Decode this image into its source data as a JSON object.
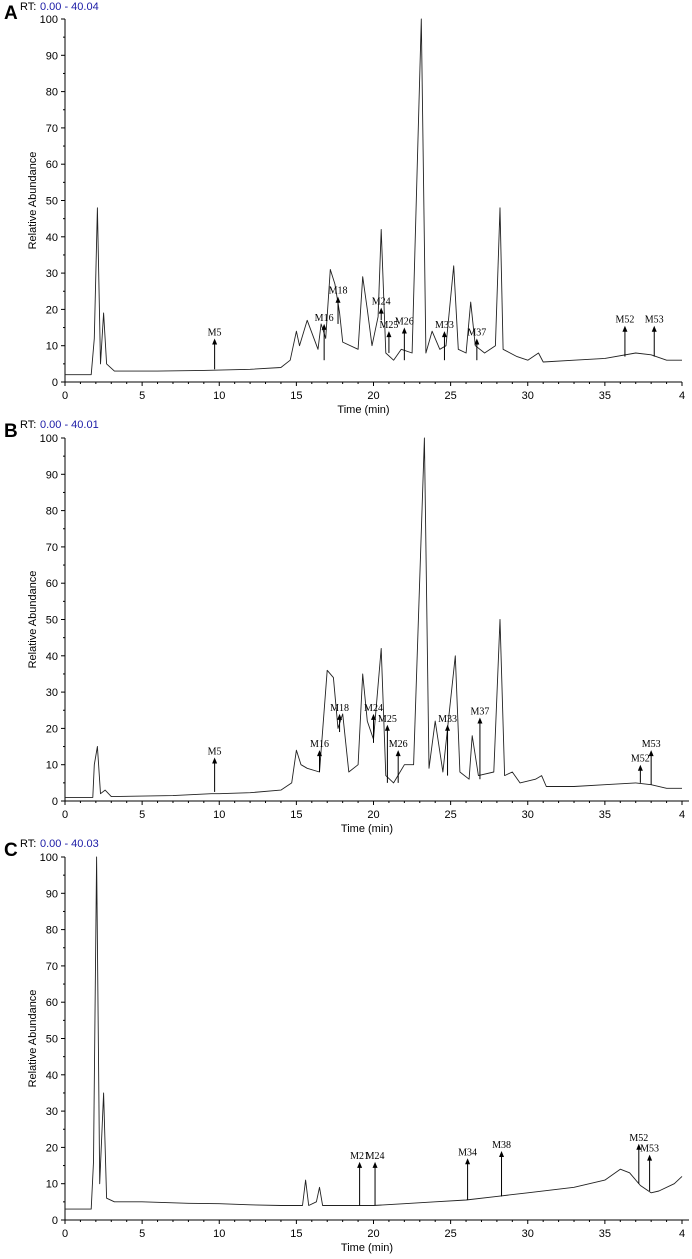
{
  "chart_data": [
    {
      "type": "line",
      "panel_letter": "A",
      "rt_prefix": "RT:",
      "rt_range_text": "0.00 - 40.04",
      "xlabel": "Time (min)",
      "ylabel": "Relative Abundance",
      "xlim": [
        0,
        40
      ],
      "ylim": [
        0,
        100
      ],
      "xticks": [
        "0",
        "5",
        "10",
        "15",
        "20",
        "25",
        "30",
        "35",
        "4"
      ],
      "yticks": [
        "0",
        "10",
        "20",
        "30",
        "40",
        "50",
        "60",
        "70",
        "80",
        "90",
        "100"
      ],
      "baseline": [
        [
          0,
          2
        ],
        [
          1.7,
          2
        ],
        [
          1.9,
          12
        ],
        [
          2.1,
          48
        ],
        [
          2.3,
          5
        ],
        [
          2.5,
          19
        ],
        [
          2.7,
          5
        ],
        [
          3.2,
          3
        ],
        [
          6,
          3
        ],
        [
          9,
          3.2
        ],
        [
          12,
          3.5
        ],
        [
          14,
          4
        ],
        [
          14.6,
          6
        ],
        [
          15,
          14
        ],
        [
          15.2,
          10
        ],
        [
          15.7,
          17
        ],
        [
          16.4,
          9
        ],
        [
          16.6,
          16
        ],
        [
          16.9,
          12
        ],
        [
          17.2,
          31
        ],
        [
          17.5,
          27
        ],
        [
          17.8,
          19
        ],
        [
          18,
          11
        ],
        [
          19,
          9
        ],
        [
          19.3,
          29
        ],
        [
          19.6,
          20
        ],
        [
          19.9,
          10
        ],
        [
          20.3,
          18
        ],
        [
          20.5,
          42
        ],
        [
          20.8,
          8
        ],
        [
          21.3,
          6
        ],
        [
          21.8,
          9
        ],
        [
          22.5,
          8
        ],
        [
          23.1,
          100
        ],
        [
          23.4,
          8
        ],
        [
          23.8,
          14
        ],
        [
          24.3,
          9
        ],
        [
          24.7,
          10
        ],
        [
          25.2,
          32
        ],
        [
          25.5,
          9
        ],
        [
          26,
          8
        ],
        [
          26.3,
          22
        ],
        [
          26.6,
          10
        ],
        [
          27.2,
          8
        ],
        [
          27.9,
          10
        ],
        [
          28.2,
          48
        ],
        [
          28.4,
          9
        ],
        [
          29.3,
          7
        ],
        [
          30,
          6
        ],
        [
          30.7,
          8
        ],
        [
          31,
          5.5
        ],
        [
          33,
          6
        ],
        [
          35,
          6.5
        ],
        [
          37,
          8
        ],
        [
          38,
          7.5
        ],
        [
          39,
          6
        ],
        [
          40,
          6
        ]
      ],
      "annotations": [
        {
          "label": "M5",
          "x": 9.7,
          "y": 3.5,
          "y_tip": 12
        },
        {
          "label": "M16",
          "x": 16.8,
          "y": 6,
          "y_tip": 16
        },
        {
          "label": "M18",
          "x": 17.7,
          "y": 16,
          "y_tip": 23.5
        },
        {
          "label": "M24",
          "x": 20.5,
          "y": 17,
          "y_tip": 20.5
        },
        {
          "label": "M25",
          "x": 21.0,
          "y": 8,
          "y_tip": 14
        },
        {
          "label": "M26",
          "x": 22.0,
          "y": 6,
          "y_tip": 15
        },
        {
          "label": "M33",
          "x": 24.6,
          "y": 6,
          "y_tip": 14
        },
        {
          "label": "M37",
          "x": 26.7,
          "y": 6,
          "y_tip": 12
        },
        {
          "label": "M52",
          "x": 36.3,
          "y": 7,
          "y_tip": 15.5
        },
        {
          "label": "M53",
          "x": 38.2,
          "y": 7,
          "y_tip": 15.5
        }
      ]
    },
    {
      "type": "line",
      "panel_letter": "B",
      "rt_prefix": "RT:",
      "rt_range_text": "0.00 - 40.01",
      "xlabel": "Time (min)",
      "ylabel": "Relative Abundance",
      "xlim": [
        0,
        40
      ],
      "ylim": [
        0,
        100
      ],
      "xticks": [
        "0",
        "5",
        "10",
        "15",
        "20",
        "25",
        "30",
        "35",
        "4"
      ],
      "yticks": [
        "0",
        "10",
        "20",
        "30",
        "40",
        "50",
        "60",
        "70",
        "80",
        "90",
        "100"
      ],
      "baseline": [
        [
          0,
          1
        ],
        [
          1.8,
          1
        ],
        [
          1.9,
          10
        ],
        [
          2.1,
          15
        ],
        [
          2.3,
          2
        ],
        [
          2.6,
          3
        ],
        [
          3,
          1.2
        ],
        [
          7,
          1.5
        ],
        [
          9.5,
          2
        ],
        [
          10,
          2
        ],
        [
          12,
          2.3
        ],
        [
          14,
          3
        ],
        [
          14.7,
          5
        ],
        [
          15,
          14
        ],
        [
          15.3,
          10
        ],
        [
          15.7,
          9
        ],
        [
          16.5,
          8
        ],
        [
          17,
          36
        ],
        [
          17.4,
          34
        ],
        [
          17.7,
          20
        ],
        [
          18,
          24
        ],
        [
          18.4,
          8
        ],
        [
          19,
          10
        ],
        [
          19.3,
          35
        ],
        [
          19.6,
          22
        ],
        [
          20,
          17
        ],
        [
          20.5,
          42
        ],
        [
          20.8,
          7
        ],
        [
          21.3,
          5
        ],
        [
          22,
          10
        ],
        [
          22.6,
          10
        ],
        [
          23.3,
          100
        ],
        [
          23.6,
          9
        ],
        [
          24,
          22
        ],
        [
          24.5,
          8
        ],
        [
          25.3,
          40
        ],
        [
          25.6,
          8
        ],
        [
          26.2,
          6
        ],
        [
          26.4,
          18
        ],
        [
          26.8,
          7
        ],
        [
          27.8,
          8
        ],
        [
          28.2,
          50
        ],
        [
          28.5,
          7
        ],
        [
          29,
          8
        ],
        [
          29.5,
          5
        ],
        [
          30.5,
          6
        ],
        [
          30.9,
          7
        ],
        [
          31.2,
          4
        ],
        [
          33,
          4
        ],
        [
          35,
          4.5
        ],
        [
          37,
          5
        ],
        [
          38,
          4.5
        ],
        [
          39,
          3.5
        ],
        [
          40,
          3.5
        ]
      ],
      "annotations": [
        {
          "label": "M5",
          "x": 9.7,
          "y": 2.5,
          "y_tip": 12
        },
        {
          "label": "M16",
          "x": 16.5,
          "y": 8,
          "y_tip": 14
        },
        {
          "label": "M18",
          "x": 17.8,
          "y": 19,
          "y_tip": 24
        },
        {
          "label": "M24",
          "x": 20.0,
          "y": 16,
          "y_tip": 24
        },
        {
          "label": "M25",
          "x": 20.9,
          "y": 5,
          "y_tip": 21
        },
        {
          "label": "M26",
          "x": 21.6,
          "y": 5,
          "y_tip": 14
        },
        {
          "label": "M33",
          "x": 24.8,
          "y": 7,
          "y_tip": 21
        },
        {
          "label": "M37",
          "x": 26.9,
          "y": 6,
          "y_tip": 23
        },
        {
          "label": "M52",
          "x": 37.3,
          "y": 5,
          "y_tip": 10
        },
        {
          "label": "M53",
          "x": 38.0,
          "y": 4.5,
          "y_tip": 14
        }
      ]
    },
    {
      "type": "line",
      "panel_letter": "C",
      "rt_prefix": "RT:",
      "rt_range_text": "0.00 - 40.03",
      "xlabel": "Time (min)",
      "ylabel": "Relative Abundance",
      "xlim": [
        0,
        40
      ],
      "ylim": [
        0,
        100
      ],
      "xticks": [
        "0",
        "5",
        "10",
        "15",
        "20",
        "25",
        "30",
        "35",
        "4"
      ],
      "yticks": [
        "0",
        "10",
        "20",
        "30",
        "40",
        "50",
        "60",
        "70",
        "80",
        "90",
        "100"
      ],
      "baseline": [
        [
          0,
          3
        ],
        [
          1.7,
          3
        ],
        [
          1.85,
          16
        ],
        [
          2.05,
          100
        ],
        [
          2.25,
          10
        ],
        [
          2.5,
          35
        ],
        [
          2.7,
          6
        ],
        [
          3.2,
          5
        ],
        [
          5,
          5
        ],
        [
          8,
          4.6
        ],
        [
          10,
          4.5
        ],
        [
          12,
          4.2
        ],
        [
          14,
          4
        ],
        [
          15.4,
          4
        ],
        [
          15.6,
          11
        ],
        [
          15.8,
          4
        ],
        [
          16.3,
          5
        ],
        [
          16.5,
          9
        ],
        [
          16.7,
          4
        ],
        [
          18,
          4
        ],
        [
          20,
          4
        ],
        [
          22,
          4.5
        ],
        [
          24,
          5
        ],
        [
          26,
          5.5
        ],
        [
          28,
          6.5
        ],
        [
          30,
          7.5
        ],
        [
          33,
          9
        ],
        [
          35,
          11
        ],
        [
          36,
          14
        ],
        [
          36.6,
          13
        ],
        [
          37.3,
          9.5
        ],
        [
          38,
          7.5
        ],
        [
          38.5,
          8
        ],
        [
          39.5,
          10
        ],
        [
          40,
          12
        ]
      ],
      "annotations": [
        {
          "label": "M21",
          "x": 19.1,
          "y": 4,
          "y_tip": 16
        },
        {
          "label": "M24",
          "x": 20.1,
          "y": 4,
          "y_tip": 16
        },
        {
          "label": "M34",
          "x": 26.1,
          "y": 5.5,
          "y_tip": 17
        },
        {
          "label": "M38",
          "x": 28.3,
          "y": 6.5,
          "y_tip": 19
        },
        {
          "label": "M52",
          "x": 37.2,
          "y": 10,
          "y_tip": 21
        },
        {
          "label": "M53",
          "x": 37.9,
          "y": 8,
          "y_tip": 18
        }
      ]
    }
  ]
}
